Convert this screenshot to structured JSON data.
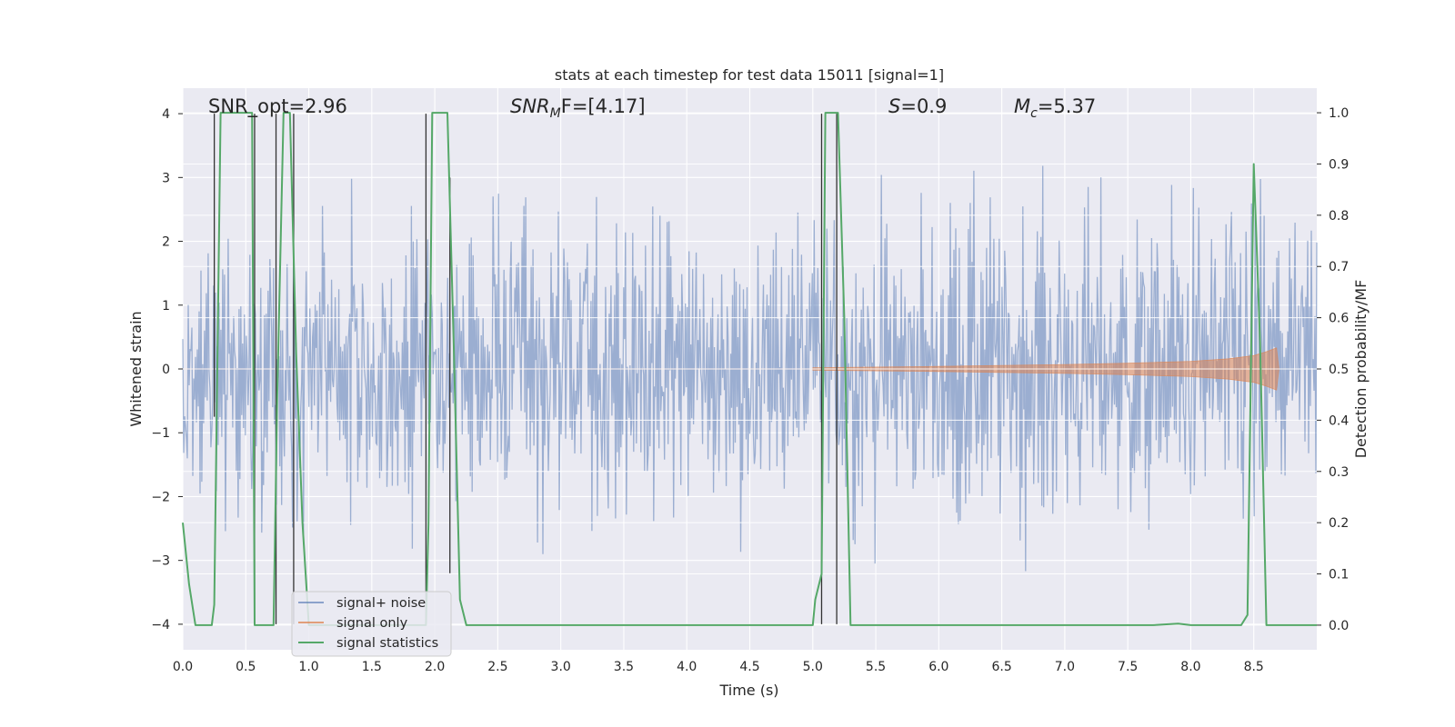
{
  "chart_data": {
    "type": "line",
    "title": "stats at each timestep for test data 15011 [signal=1]",
    "xlabel": "Time (s)",
    "ylabel": "Whitened strain",
    "ylabel_right": "Detection probability/MF",
    "xlim": [
      0.0,
      9.0
    ],
    "ylim": [
      -4.4,
      4.4
    ],
    "ylim_right": [
      -0.048,
      1.048
    ],
    "xticks": [
      "0.0",
      "0.5",
      "1.0",
      "1.5",
      "2.0",
      "2.5",
      "3.0",
      "3.5",
      "4.0",
      "4.5",
      "5.0",
      "5.5",
      "6.0",
      "6.5",
      "7.0",
      "7.5",
      "8.0",
      "8.5"
    ],
    "yticks": [
      "4",
      "3",
      "2",
      "1",
      "0",
      "−1",
      "−2",
      "−3",
      "−4"
    ],
    "yticks_right": [
      "1.0",
      "0.9",
      "0.8",
      "0.7",
      "0.6",
      "0.5",
      "0.4",
      "0.3",
      "0.2",
      "0.1",
      "0.0"
    ],
    "annotations": {
      "snr_opt": "SNR_opt=2.96",
      "snr_mf_main": "SNR",
      "snr_mf_sub": "M",
      "snr_mf_rest": "F=[4.17]",
      "s_sym": "S",
      "s_val": "=0.9",
      "mc_sym": "M",
      "mc_sub": "c",
      "mc_val": "=5.37"
    },
    "legend": {
      "placement": "lower-left",
      "entries": [
        "signal+ noise",
        "signal only",
        "signal statistics"
      ]
    },
    "series": [
      {
        "name": "signal+ noise",
        "color": "#4c72b0",
        "description": "noise-dominated whitened strain, roughly within -3.5..3.5",
        "amplitude_profile": [
          {
            "x": 0.0,
            "amp": 2.4
          },
          {
            "x": 0.3,
            "amp": 3.1
          },
          {
            "x": 0.6,
            "amp": 2.8
          },
          {
            "x": 0.9,
            "amp": 3.2
          },
          {
            "x": 1.5,
            "amp": 2.9
          },
          {
            "x": 2.0,
            "amp": 3.0
          },
          {
            "x": 3.0,
            "amp": 3.1
          },
          {
            "x": 3.5,
            "amp": 3.3
          },
          {
            "x": 4.0,
            "amp": 2.9
          },
          {
            "x": 5.0,
            "amp": 3.0
          },
          {
            "x": 6.0,
            "amp": 3.1
          },
          {
            "x": 7.0,
            "amp": 3.2
          },
          {
            "x": 8.0,
            "amp": 3.2
          },
          {
            "x": 8.5,
            "amp": 3.6
          },
          {
            "x": 9.0,
            "amp": 3.0
          }
        ]
      },
      {
        "name": "signal only",
        "color": "#dd8452",
        "description": "chirp envelope growing toward merger near 8.7 s",
        "envelope": [
          {
            "x": 5.0,
            "amp": 0.02
          },
          {
            "x": 6.0,
            "amp": 0.04
          },
          {
            "x": 7.0,
            "amp": 0.07
          },
          {
            "x": 7.5,
            "amp": 0.09
          },
          {
            "x": 8.0,
            "amp": 0.12
          },
          {
            "x": 8.3,
            "amp": 0.16
          },
          {
            "x": 8.5,
            "amp": 0.21
          },
          {
            "x": 8.6,
            "amp": 0.27
          },
          {
            "x": 8.68,
            "amp": 0.33
          },
          {
            "x": 8.7,
            "amp": 0.0
          }
        ]
      },
      {
        "name": "signal statistics",
        "color": "#55a868",
        "axis": "right",
        "x": [
          0.0,
          0.05,
          0.1,
          0.23,
          0.25,
          0.3,
          0.55,
          0.57,
          0.61,
          0.67,
          0.72,
          0.75,
          0.8,
          0.85,
          0.9,
          0.95,
          1.0,
          1.05,
          1.5,
          1.9,
          1.93,
          1.95,
          1.98,
          2.05,
          2.1,
          2.15,
          2.2,
          2.25,
          3.0,
          4.0,
          5.0,
          5.02,
          5.07,
          5.1,
          5.13,
          5.2,
          5.25,
          5.3,
          6.0,
          7.0,
          7.7,
          7.9,
          8.0,
          8.4,
          8.45,
          8.5,
          8.55,
          8.6,
          9.0
        ],
        "values": [
          0.2,
          0.08,
          0.0,
          0.0,
          0.04,
          1.0,
          1.0,
          0.0,
          0.0,
          0.0,
          0.0,
          0.45,
          1.0,
          1.0,
          0.53,
          0.2,
          0.0,
          0.0,
          0.0,
          0.0,
          0.0,
          0.2,
          1.0,
          1.0,
          1.0,
          0.55,
          0.05,
          0.0,
          0.0,
          0.0,
          0.0,
          0.05,
          0.1,
          1.0,
          1.0,
          1.0,
          0.6,
          0.0,
          0.0,
          0.0,
          0.0,
          0.003,
          0.0,
          0.0,
          0.02,
          0.9,
          0.55,
          0.0,
          0.0
        ]
      }
    ],
    "vertical_lines": {
      "color": "#333333",
      "segments": [
        {
          "x": 0.25,
          "y1": -0.75,
          "y2": 4.0
        },
        {
          "x": 0.57,
          "y1": -4.0,
          "y2": 4.0
        },
        {
          "x": 0.74,
          "y1": -4.0,
          "y2": 4.0
        },
        {
          "x": 0.88,
          "y1": -4.0,
          "y2": 4.0
        },
        {
          "x": 1.93,
          "y1": -4.0,
          "y2": 4.0
        },
        {
          "x": 2.12,
          "y1": -3.2,
          "y2": 3.0
        },
        {
          "x": 5.07,
          "y1": -4.0,
          "y2": 4.0
        },
        {
          "x": 5.19,
          "y1": -4.0,
          "y2": 4.0
        }
      ]
    }
  }
}
